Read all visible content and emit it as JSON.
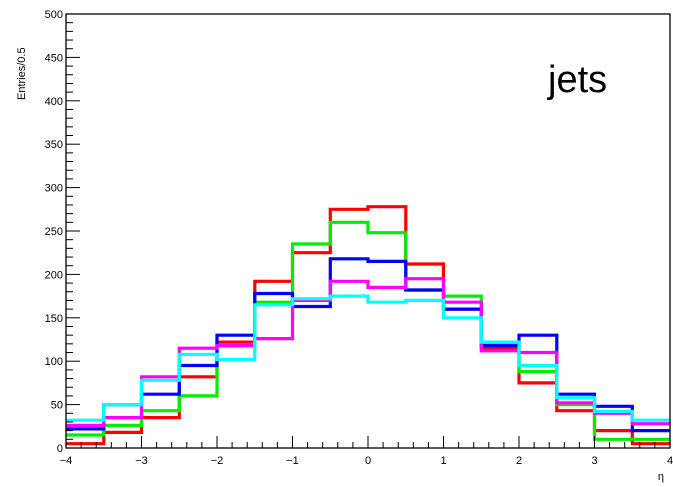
{
  "chart_data": {
    "type": "line",
    "style": "step-histogram",
    "annotation": "jets",
    "xlabel": "η",
    "ylabel": "Entries/0.5",
    "xlim": [
      -4,
      4
    ],
    "ylim": [
      0,
      500
    ],
    "bin_edges": [
      -4,
      -3.5,
      -3,
      -2.5,
      -2,
      -1.5,
      -1,
      -0.5,
      0,
      0.5,
      1,
      1.5,
      2,
      2.5,
      3,
      3.5,
      4
    ],
    "x_ticks": [
      -4,
      -3,
      -2,
      -1,
      0,
      1,
      2,
      3,
      4
    ],
    "y_ticks": [
      0,
      50,
      100,
      150,
      200,
      250,
      300,
      350,
      400,
      450,
      500
    ],
    "series": [
      {
        "color": "#ff0000",
        "values": [
          5,
          18,
          35,
          82,
          122,
          192,
          225,
          275,
          278,
          212,
          160,
          115,
          75,
          43,
          20,
          5
        ]
      },
      {
        "color": "#00ee00",
        "values": [
          15,
          26,
          43,
          60,
          118,
          168,
          235,
          260,
          248,
          182,
          175,
          120,
          88,
          50,
          10,
          10
        ]
      },
      {
        "color": "#0000ff",
        "values": [
          22,
          50,
          62,
          95,
          130,
          178,
          163,
          218,
          215,
          182,
          160,
          118,
          130,
          62,
          48,
          20
        ]
      },
      {
        "color": "#ff00ff",
        "values": [
          26,
          35,
          82,
          115,
          118,
          126,
          170,
          192,
          185,
          195,
          168,
          112,
          110,
          52,
          40,
          28
        ]
      },
      {
        "color": "#00ffff",
        "values": [
          32,
          50,
          78,
          108,
          102,
          165,
          172,
          175,
          168,
          170,
          150,
          122,
          95,
          58,
          42,
          32
        ]
      }
    ]
  }
}
